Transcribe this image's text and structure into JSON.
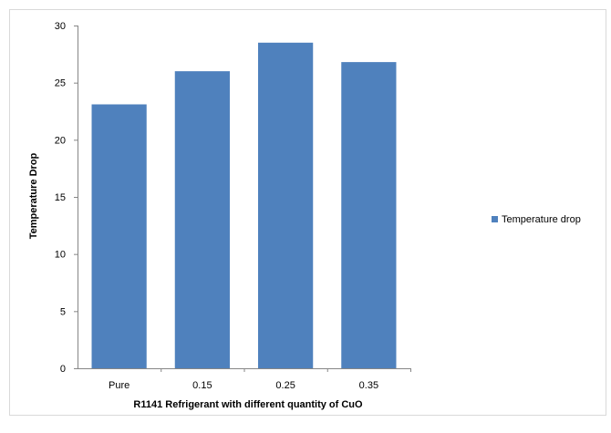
{
  "chart_data": {
    "type": "bar",
    "categories": [
      "Pure",
      "0.15",
      "0.25",
      "0.35"
    ],
    "series": [
      {
        "name": "Temperature drop",
        "values": [
          23.1,
          26.0,
          28.5,
          26.8
        ],
        "color": "#4f81bd"
      }
    ],
    "xlabel": "R1141 Refrigerant with different quantity of CuO",
    "ylabel": "Temperature Drop",
    "ylim": [
      0,
      30
    ],
    "yticks": [
      0,
      5,
      10,
      15,
      20,
      25,
      30
    ],
    "grid": false,
    "legend_position": "right"
  }
}
